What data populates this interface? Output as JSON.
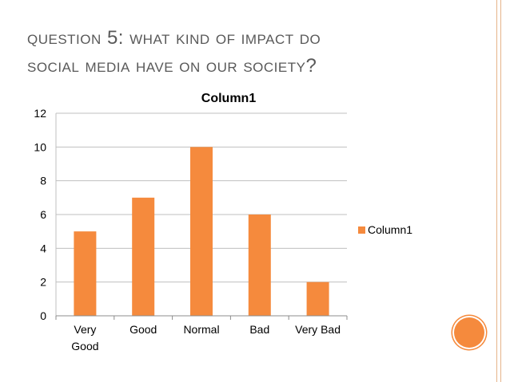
{
  "slide": {
    "title_line1": "Question 5: what kind of impact do",
    "title_line2": "social media have on our society?"
  },
  "colors": {
    "accent": "#F58A3D",
    "title_text": "#595959",
    "gridline": "#BFBFBF"
  },
  "chart_data": {
    "type": "bar",
    "title": "Column1",
    "categories": [
      "Very Good",
      "Good",
      "Normal",
      "Bad",
      "Very Bad"
    ],
    "category_label_lines": [
      [
        "Very",
        "Good"
      ],
      [
        "Good"
      ],
      [
        "Normal"
      ],
      [
        "Bad"
      ],
      [
        "Very Bad"
      ]
    ],
    "series": [
      {
        "name": "Column1",
        "values": [
          5,
          7,
          10,
          6,
          2
        ]
      }
    ],
    "xlabel": "",
    "ylabel": "",
    "ylim": [
      0,
      12
    ],
    "yticks": [
      0,
      2,
      4,
      6,
      8,
      10,
      12
    ],
    "grid": true,
    "legend_position": "right"
  }
}
